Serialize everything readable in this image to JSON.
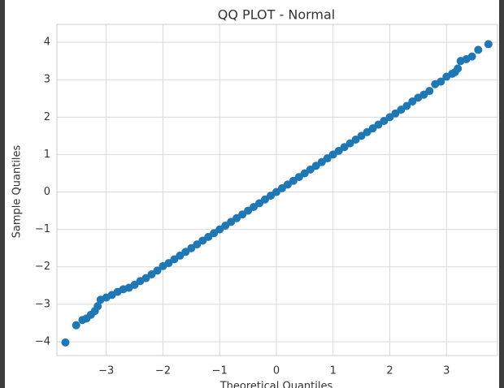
{
  "chart_data": {
    "type": "scatter",
    "title": "QQ PLOT - Normal",
    "x_label": "Theoretical Quantiles",
    "y_label": "Sample Quantiles",
    "xlim": [
      -3.87,
      3.9
    ],
    "ylim": [
      -4.37,
      4.48
    ],
    "xticks": [
      {
        "value": -3,
        "label": "−3"
      },
      {
        "value": -2,
        "label": "−2"
      },
      {
        "value": -1,
        "label": "−1"
      },
      0,
      1,
      2,
      3
    ],
    "yticks": [
      {
        "value": -4,
        "label": "−4"
      },
      {
        "value": -3,
        "label": "−3"
      },
      {
        "value": -2,
        "label": "−2"
      },
      {
        "value": -1,
        "label": "−1"
      },
      0,
      1,
      2,
      3,
      4
    ],
    "grid": true,
    "color": "#1f77b4",
    "x": [
      -3.72,
      -3.53,
      -3.42,
      -3.35,
      -3.27,
      -3.2,
      -3.15,
      -3.1,
      -3.0,
      -2.9,
      -2.8,
      -2.7,
      -2.6,
      -2.5,
      -2.4,
      -2.3,
      -2.2,
      -2.1,
      -2.0,
      -1.9,
      -1.8,
      -1.7,
      -1.6,
      -1.5,
      -1.4,
      -1.3,
      -1.2,
      -1.1,
      -1.0,
      -0.9,
      -0.8,
      -0.7,
      -0.6,
      -0.5,
      -0.4,
      -0.3,
      -0.2,
      -0.1,
      0.0,
      0.1,
      0.2,
      0.3,
      0.4,
      0.5,
      0.6,
      0.7,
      0.8,
      0.9,
      1.0,
      1.1,
      1.2,
      1.3,
      1.4,
      1.5,
      1.6,
      1.7,
      1.8,
      1.9,
      2.0,
      2.1,
      2.2,
      2.3,
      2.4,
      2.5,
      2.6,
      2.7,
      2.8,
      2.9,
      3.0,
      3.1,
      3.15,
      3.2,
      3.25,
      3.35,
      3.45,
      3.56,
      3.74
    ],
    "y": [
      -4.02,
      -3.56,
      -3.42,
      -3.38,
      -3.28,
      -3.18,
      -3.05,
      -2.88,
      -2.82,
      -2.75,
      -2.67,
      -2.6,
      -2.56,
      -2.48,
      -2.38,
      -2.3,
      -2.2,
      -2.1,
      -1.98,
      -1.9,
      -1.8,
      -1.7,
      -1.6,
      -1.5,
      -1.4,
      -1.3,
      -1.2,
      -1.1,
      -1.0,
      -0.9,
      -0.8,
      -0.7,
      -0.6,
      -0.5,
      -0.4,
      -0.3,
      -0.2,
      -0.1,
      0.0,
      0.1,
      0.2,
      0.3,
      0.4,
      0.5,
      0.6,
      0.7,
      0.8,
      0.9,
      1.0,
      1.1,
      1.2,
      1.3,
      1.4,
      1.5,
      1.6,
      1.7,
      1.8,
      1.9,
      2.0,
      2.1,
      2.2,
      2.3,
      2.42,
      2.52,
      2.6,
      2.7,
      2.88,
      2.95,
      3.08,
      3.16,
      3.2,
      3.3,
      3.5,
      3.55,
      3.62,
      3.8,
      3.95
    ]
  }
}
